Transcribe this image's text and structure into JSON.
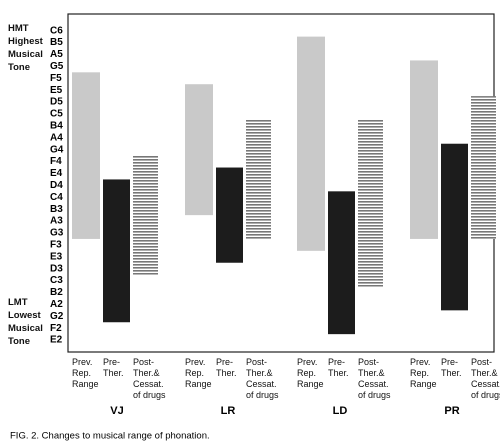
{
  "chart_data": {
    "type": "range-bar",
    "caption": "FIG. 2. Changes to musical range of phonation.",
    "top_label": "HMT Highest Musical Tone",
    "bottom_label": "LMT Lowest Musical Tone",
    "categories": [
      "VJ",
      "LR",
      "LD",
      "PR"
    ],
    "ylim": [
      -1,
      27.4
    ],
    "yticks": [
      {
        "value": 26,
        "label": "C6"
      },
      {
        "value": 25,
        "label": "B5"
      },
      {
        "value": 24,
        "label": "A5"
      },
      {
        "value": 23,
        "label": "G5"
      },
      {
        "value": 22,
        "label": "F5"
      },
      {
        "value": 21,
        "label": "E5"
      },
      {
        "value": 20,
        "label": "D5"
      },
      {
        "value": 19,
        "label": "C5"
      },
      {
        "value": 18,
        "label": "B4"
      },
      {
        "value": 17,
        "label": "A4"
      },
      {
        "value": 16,
        "label": "G4"
      },
      {
        "value": 15,
        "label": "F4"
      },
      {
        "value": 14,
        "label": "E4"
      },
      {
        "value": 13,
        "label": "D4"
      },
      {
        "value": 12,
        "label": "C4"
      },
      {
        "value": 11,
        "label": "B3"
      },
      {
        "value": 10,
        "label": "A3"
      },
      {
        "value": 9,
        "label": "G3"
      },
      {
        "value": 8,
        "label": "F3"
      },
      {
        "value": 7,
        "label": "E3"
      },
      {
        "value": 6,
        "label": "D3"
      },
      {
        "value": 5,
        "label": "C3"
      },
      {
        "value": 4,
        "label": "B2"
      },
      {
        "value": 3,
        "label": "A2"
      },
      {
        "value": 2,
        "label": "G2"
      },
      {
        "value": 1,
        "label": "F2"
      },
      {
        "value": 0,
        "label": "E2"
      }
    ],
    "series": [
      {
        "name": "Prev. Rep. Range",
        "color": "#c9c9c9",
        "pattern": "solid",
        "low": [
          8.5,
          10.5,
          7.5,
          8.5
        ],
        "high": [
          22.5,
          21.5,
          25.5,
          23.5
        ]
      },
      {
        "name": "Pre-Ther.",
        "color": "#1c1c1c",
        "pattern": "solid",
        "low": [
          1.5,
          6.5,
          0.5,
          2.5
        ],
        "high": [
          13.5,
          14.5,
          12.5,
          16.5
        ]
      },
      {
        "name": "Post-Ther.& Cessat. of drugs",
        "color": "#777777",
        "pattern": "horizontal-lines",
        "low": [
          5.5,
          8.5,
          4.5,
          8.5
        ],
        "high": [
          15.5,
          18.5,
          18.5,
          20.5
        ]
      }
    ]
  }
}
